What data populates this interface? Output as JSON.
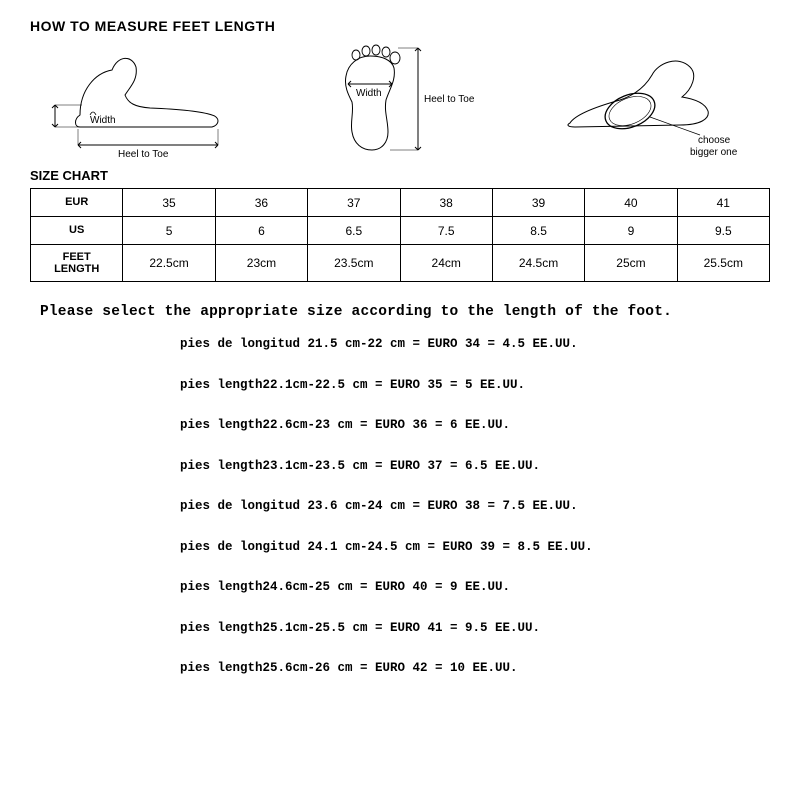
{
  "heading": "HOW TO MEASURE FEET LENGTH",
  "section_label": "SIZE CHART",
  "diagrams": {
    "side": {
      "width_label": "Width",
      "heel_toe_label": "Heel to Toe"
    },
    "sole": {
      "width_label": "Width",
      "heel_toe_label": "Heel to Toe"
    },
    "girth": {
      "line1": "choose",
      "line2": "bigger one"
    }
  },
  "table": {
    "row_headers": [
      "EUR",
      "US",
      "FEET LENGTH"
    ],
    "rows": [
      [
        "35",
        "36",
        "37",
        "38",
        "39",
        "40",
        "41"
      ],
      [
        "5",
        "6",
        "6.5",
        "7.5",
        "8.5",
        "9",
        "9.5"
      ],
      [
        "22.5cm",
        "23cm",
        "23.5cm",
        "24cm",
        "24.5cm",
        "25cm",
        "25.5cm"
      ]
    ]
  },
  "instruction": "Please select the appropriate size according to the length of the foot.",
  "mappings": [
    "pies de longitud 21.5 cm-22 cm = EURO 34 = 4.5 EE.UU.",
    "pies length22.1cm-22.5 cm = EURO 35 = 5 EE.UU.",
    "pies length22.6cm-23 cm = EURO 36 = 6 EE.UU.",
    "pies length23.1cm-23.5 cm = EURO 37 = 6.5 EE.UU.",
    "pies de longitud 23.6 cm-24 cm = EURO 38 = 7.5 EE.UU.",
    "pies de longitud 24.1 cm-24.5 cm = EURO 39 = 8.5 EE.UU.",
    "pies length24.6cm-25 cm = EURO 40 = 9 EE.UU.",
    "pies length25.1cm-25.5 cm = EURO 41 = 9.5 EE.UU.",
    "pies length25.6cm-26 cm = EURO 42 = 10 EE.UU."
  ],
  "style": {
    "background": "#ffffff",
    "text_color": "#000000",
    "border_color": "#000000",
    "heading_fontsize": 14,
    "section_fontsize": 13,
    "table_fontsize": 12,
    "instruction_fontsize": 14.5,
    "mapping_fontsize": 12.5,
    "mono_font": "Courier New"
  }
}
